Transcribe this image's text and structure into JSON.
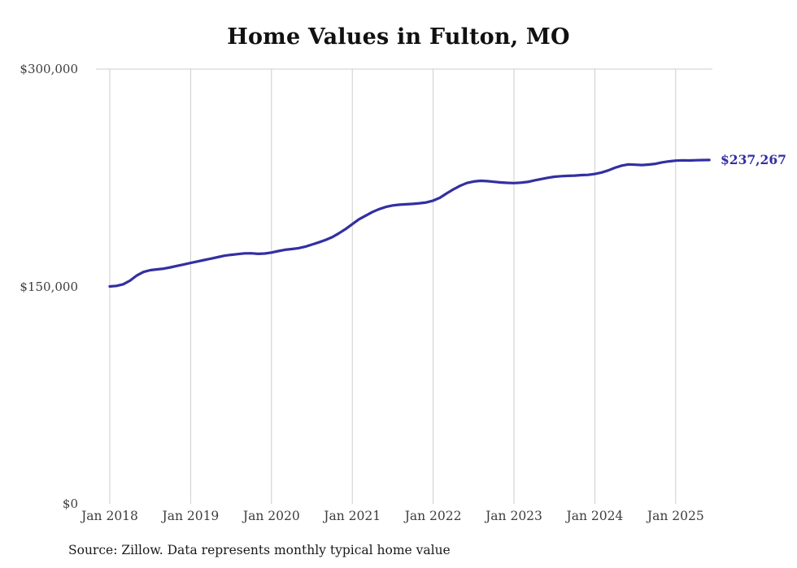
{
  "source_note": "Source: Zillow. Data represents monthly typical home value",
  "colors": {
    "line": "#332fa2",
    "grid": "#cccccc",
    "axis_text": "#3d3d3d"
  },
  "chart_data": {
    "type": "line",
    "title": "Home Values in Fulton, MO",
    "series_name": "Monthly typical home value",
    "legend": "none",
    "grid": "vertical year gridlines, top rule at y max",
    "ylim": [
      0,
      300000
    ],
    "y_ticks": [
      {
        "label": "$0",
        "value": 0
      },
      {
        "label": "$150,000",
        "value": 150000
      },
      {
        "label": "$300,000",
        "value": 300000
      }
    ],
    "x_tick_labels": [
      "Jan 2018",
      "Jan 2019",
      "Jan 2020",
      "Jan 2021",
      "Jan 2022",
      "Jan 2023",
      "Jan 2024",
      "Jan 2025"
    ],
    "end_label": "$237,267",
    "end_value": 237267,
    "months": [
      "2018-01",
      "2018-02",
      "2018-03",
      "2018-04",
      "2018-05",
      "2018-06",
      "2018-07",
      "2018-08",
      "2018-09",
      "2018-10",
      "2018-11",
      "2018-12",
      "2019-01",
      "2019-02",
      "2019-03",
      "2019-04",
      "2019-05",
      "2019-06",
      "2019-07",
      "2019-08",
      "2019-09",
      "2019-10",
      "2019-11",
      "2019-12",
      "2020-01",
      "2020-02",
      "2020-03",
      "2020-04",
      "2020-05",
      "2020-06",
      "2020-07",
      "2020-08",
      "2020-09",
      "2020-10",
      "2020-11",
      "2020-12",
      "2021-01",
      "2021-02",
      "2021-03",
      "2021-04",
      "2021-05",
      "2021-06",
      "2021-07",
      "2021-08",
      "2021-09",
      "2021-10",
      "2021-11",
      "2021-12",
      "2022-01",
      "2022-02",
      "2022-03",
      "2022-04",
      "2022-05",
      "2022-06",
      "2022-07",
      "2022-08",
      "2022-09",
      "2022-10",
      "2022-11",
      "2022-12",
      "2023-01",
      "2023-02",
      "2023-03",
      "2023-04",
      "2023-05",
      "2023-06",
      "2023-07",
      "2023-08",
      "2023-09",
      "2023-10",
      "2023-11",
      "2023-12",
      "2024-01",
      "2024-02",
      "2024-03",
      "2024-04",
      "2024-05",
      "2024-06",
      "2024-07",
      "2024-08",
      "2024-09",
      "2024-10",
      "2024-11",
      "2024-12",
      "2025-01",
      "2025-02",
      "2025-03",
      "2025-04",
      "2025-05",
      "2025-06"
    ],
    "values": [
      150000,
      150400,
      151500,
      154000,
      157500,
      160000,
      161200,
      161800,
      162300,
      163200,
      164200,
      165200,
      166200,
      167200,
      168200,
      169200,
      170200,
      171200,
      171800,
      172300,
      172800,
      172900,
      172500,
      172700,
      173400,
      174400,
      175300,
      175800,
      176400,
      177400,
      178900,
      180400,
      182000,
      184000,
      186600,
      189600,
      193000,
      196400,
      198900,
      201400,
      203400,
      204900,
      205900,
      206400,
      206700,
      207000,
      207400,
      208000,
      209200,
      211200,
      214200,
      217000,
      219400,
      221400,
      222400,
      222900,
      222700,
      222200,
      221800,
      221500,
      221300,
      221600,
      222100,
      223100,
      224100,
      225000,
      225700,
      226100,
      226300,
      226500,
      226800,
      227000,
      227600,
      228600,
      230100,
      231900,
      233400,
      234200,
      234000,
      233800,
      234100,
      234600,
      235600,
      236300,
      236800,
      237000,
      236900,
      237100,
      237200,
      237267
    ]
  }
}
